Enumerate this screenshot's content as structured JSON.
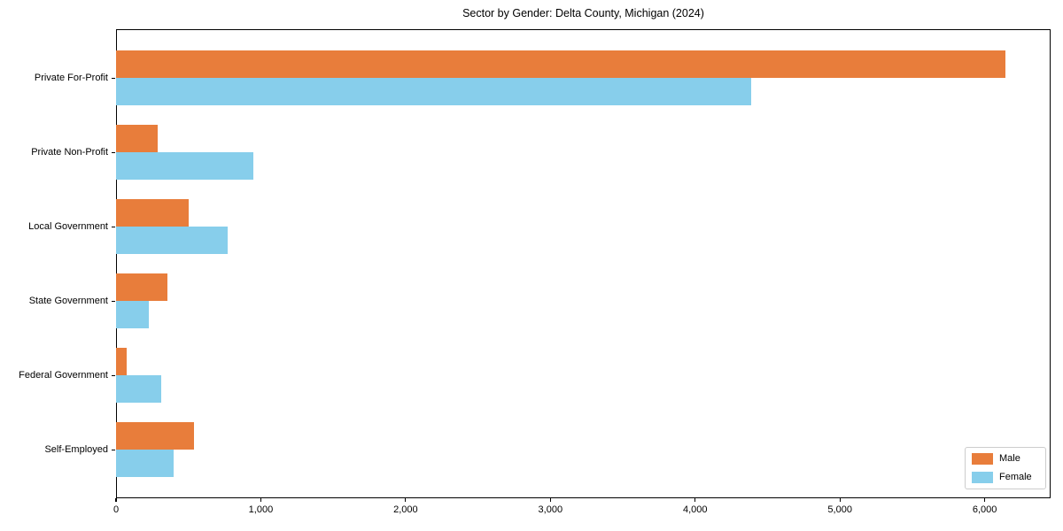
{
  "title": "Sector by Gender: Delta County, Michigan (2024)",
  "colors": {
    "male": "#e87d3b",
    "female": "#87ceeb",
    "axis": "#000000",
    "legend_border": "#cccccc",
    "background": "#ffffff"
  },
  "chart_data": {
    "type": "bar",
    "orientation": "horizontal",
    "title": "Sector by Gender: Delta County, Michigan (2024)",
    "categories": [
      "Private For-Profit",
      "Private Non-Profit",
      "Local Government",
      "State Government",
      "Federal Government",
      "Self-Employed"
    ],
    "series": [
      {
        "name": "Male",
        "color": "#e87d3b",
        "values": [
          6140,
          285,
          500,
          355,
          75,
          540
        ]
      },
      {
        "name": "Female",
        "color": "#87ceeb",
        "values": [
          4390,
          950,
          770,
          225,
          315,
          400
        ]
      }
    ],
    "xlabel": "",
    "ylabel": "",
    "xlim": [
      0,
      6455
    ],
    "x_ticks": [
      0,
      1000,
      2000,
      3000,
      4000,
      5000,
      6000
    ],
    "x_tick_labels": [
      "0",
      "1,000",
      "2,000",
      "3,000",
      "4,000",
      "5,000",
      "6,000"
    ],
    "grid": false,
    "legend_position": "lower right"
  },
  "legend": {
    "items": [
      {
        "label": "Male",
        "color": "#e87d3b"
      },
      {
        "label": "Female",
        "color": "#87ceeb"
      }
    ]
  }
}
